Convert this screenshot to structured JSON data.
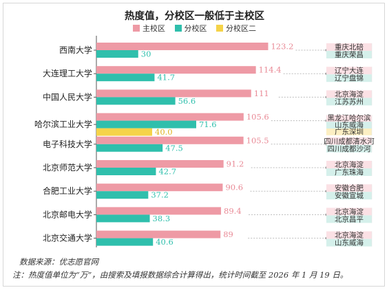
{
  "title": "热度值，分校区一般低于主校区",
  "legend": [
    {
      "name": "主校区",
      "color": "#ee9aa5"
    },
    {
      "name": "分校区",
      "color": "#2fbfac"
    },
    {
      "name": "分校区二",
      "color": "#f5d349"
    }
  ],
  "source": "数据来源：优志愿官网",
  "note": "注：热度值单位为“万”，由搜索及填报数据综合计算得出，统计时间截至 2026 年 1 月 19 日。",
  "chart_data": {
    "type": "bar",
    "orientation": "horizontal",
    "title": "热度值，分校区一般低于主校区",
    "categories": [
      "西南大学",
      "大连理工大学",
      "中国人民大学",
      "哈尔滨工业大学",
      "电子科技大学",
      "北京师范大学",
      "合肥工业大学",
      "北京邮电大学",
      "北京交通大学"
    ],
    "series": [
      {
        "name": "主校区",
        "color": "#ee9aa5",
        "values": [
          123.2,
          114.4,
          111,
          105.6,
          105.5,
          91.2,
          90.6,
          89.4,
          89
        ]
      },
      {
        "name": "分校区",
        "color": "#2fbfac",
        "values": [
          30,
          41.7,
          56.6,
          71.6,
          47.5,
          42.7,
          37.2,
          38.3,
          40.6
        ]
      },
      {
        "name": "分校区二",
        "color": "#f5d349",
        "values": [
          null,
          null,
          null,
          40.0,
          null,
          null,
          null,
          null,
          null
        ]
      }
    ],
    "value_labels": [
      [
        "123.2",
        "30"
      ],
      [
        "114.4",
        "41.7"
      ],
      [
        "111",
        "56.6"
      ],
      [
        "105.6",
        "71.6",
        "40.0"
      ],
      [
        "105.5",
        "47.5"
      ],
      [
        "91.2",
        "42.7"
      ],
      [
        "90.6",
        "37.2"
      ],
      [
        "89.4",
        "38.3"
      ],
      [
        "89",
        "40.6"
      ]
    ],
    "campuses": [
      [
        "重庆北碚",
        "重庆荣昌"
      ],
      [
        "辽宁大连",
        "辽宁盘锦"
      ],
      [
        "北京海淀",
        "江苏苏州"
      ],
      [
        "黑龙江哈尔滨",
        "山东威海",
        "广东深圳"
      ],
      [
        "四川成都清水河",
        "四川成都沙河"
      ],
      [
        "北京海淀",
        "广东珠海"
      ],
      [
        "安徽合肥",
        "安徽宣城"
      ],
      [
        "北京海淀",
        "北京昌平"
      ],
      [
        "北京海淀",
        "山东威海"
      ]
    ],
    "xlim": [
      0,
      130
    ],
    "grid": false,
    "legend_position": "top"
  }
}
